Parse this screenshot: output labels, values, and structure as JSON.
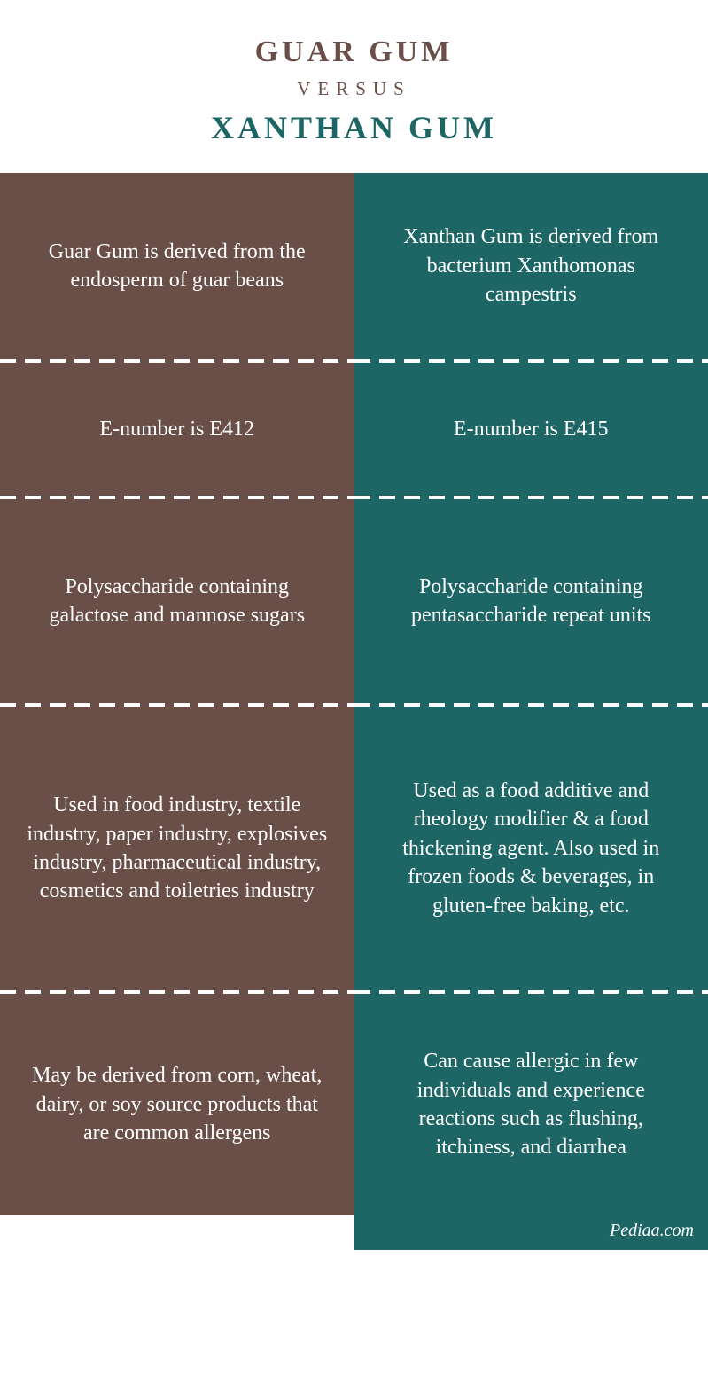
{
  "header": {
    "title_left": "GUAR GUM",
    "versus": "VERSUS",
    "title_right": "XANTHAN GUM",
    "title_left_color": "#6a4f48",
    "versus_color": "#6a4f48",
    "title_right_color": "#1e6565",
    "title_fontsize": 34,
    "versus_fontsize": 21,
    "title2_fontsize": 36
  },
  "columns": {
    "left": {
      "background_color": "#6a4f48",
      "text_color": "#ffffff"
    },
    "right": {
      "background_color": "#1e6565",
      "text_color": "#ffffff"
    }
  },
  "rows": [
    {
      "left": "Guar Gum is derived from the endosperm of guar beans",
      "right": "Xanthan Gum is derived from bacterium Xanthomonas campestris"
    },
    {
      "left": "E-number is E412",
      "right": "E-number is E415"
    },
    {
      "left": "Polysaccharide containing galactose and mannose sugars",
      "right": "Polysaccharide containing pentasaccharide repeat units"
    },
    {
      "left": "Used in food industry, textile industry, paper industry, explosives industry, pharmaceutical industry, cosmetics and toiletries industry",
      "right": "Used as a food additive and rheology modifier & a food thickening agent. Also used in frozen foods & beverages, in gluten-free baking, etc."
    },
    {
      "left": "May be derived from corn, wheat, dairy, or soy source products that are common allergens",
      "right": "Can cause allergic in few individuals and experience reactions such as flushing, itchiness, and diarrhea"
    }
  ],
  "cell_fontsize": 24,
  "footer": {
    "text": "Pediaa.com",
    "color": "#ffffff",
    "background_color": "#1e6565",
    "fontsize": 20
  },
  "divider": {
    "dash_color": "#ffffff",
    "dash_width": 18,
    "gap_width": 10,
    "height": 4
  }
}
